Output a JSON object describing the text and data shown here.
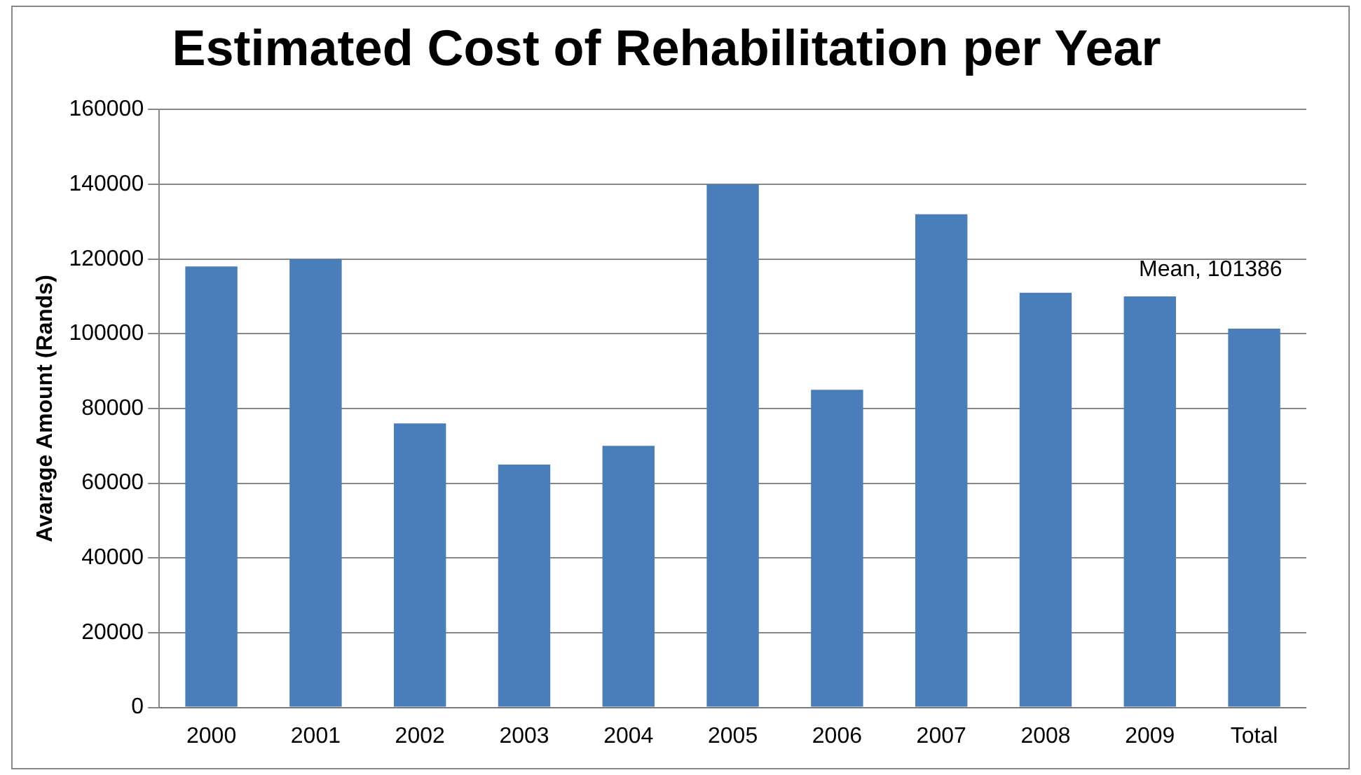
{
  "chart_data": {
    "type": "bar",
    "title": "Estimated Cost of Rehabilitation per Year",
    "ylabel": "Avarage Amount (Rands)",
    "categories": [
      "2000",
      "2001",
      "2002",
      "2003",
      "2004",
      "2005",
      "2006",
      "2007",
      "2008",
      "2009",
      "Total"
    ],
    "values": [
      118000,
      120000,
      76000,
      65000,
      70000,
      140000,
      85000,
      132000,
      111000,
      110000,
      101386
    ],
    "color": "#4a7ebb",
    "ylim": [
      0,
      160000
    ],
    "yticks": [
      0,
      20000,
      40000,
      60000,
      80000,
      100000,
      120000,
      140000,
      160000
    ],
    "grid": "y",
    "annotations": [
      {
        "text": "Mean, 101386",
        "x": "Total",
        "y": 101386
      }
    ]
  }
}
